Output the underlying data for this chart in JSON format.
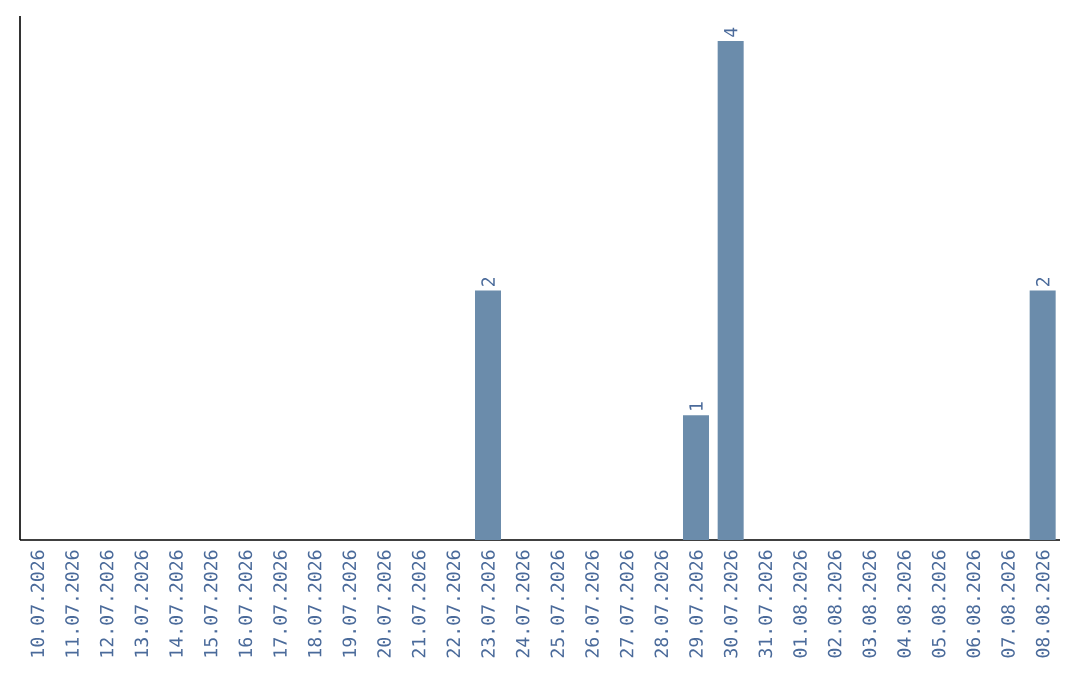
{
  "chart_data": {
    "type": "bar",
    "categories": [
      "10.07.2026",
      "11.07.2026",
      "12.07.2026",
      "13.07.2026",
      "14.07.2026",
      "15.07.2026",
      "16.07.2026",
      "17.07.2026",
      "18.07.2026",
      "19.07.2026",
      "20.07.2026",
      "21.07.2026",
      "22.07.2026",
      "23.07.2026",
      "24.07.2026",
      "25.07.2026",
      "26.07.2026",
      "27.07.2026",
      "28.07.2026",
      "29.07.2026",
      "30.07.2026",
      "31.07.2026",
      "01.08.2026",
      "02.08.2026",
      "03.08.2026",
      "04.08.2026",
      "05.08.2026",
      "06.08.2026",
      "07.08.2026",
      "08.08.2026"
    ],
    "values": [
      null,
      null,
      null,
      null,
      null,
      null,
      null,
      null,
      null,
      null,
      null,
      null,
      null,
      2,
      null,
      null,
      null,
      null,
      null,
      1,
      4,
      null,
      null,
      null,
      null,
      null,
      null,
      null,
      null,
      2
    ],
    "data_labels": true,
    "color": "#6b8cab",
    "ylim": [
      0,
      4.2
    ],
    "tick_labels": "x",
    "grid": false
  }
}
